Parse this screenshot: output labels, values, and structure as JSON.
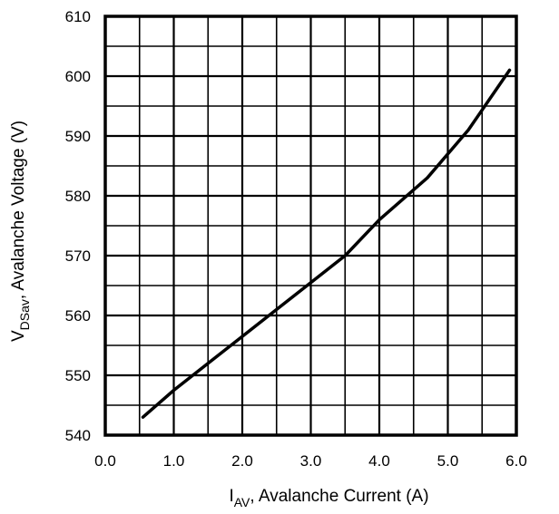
{
  "chart_data": {
    "type": "line",
    "title": "",
    "xlabel": {
      "main": "I",
      "sub": "AV",
      "rest": ", Avalanche Current (A)"
    },
    "ylabel": {
      "main": "V",
      "sub": "DSav",
      "rest": ", Avalanche Voltage (V)"
    },
    "xlim": [
      0,
      6
    ],
    "ylim": [
      540,
      610
    ],
    "x_ticks": [
      "0.0",
      "1.0",
      "2.0",
      "3.0",
      "4.0",
      "5.0",
      "6.0"
    ],
    "y_ticks": [
      "540",
      "550",
      "560",
      "570",
      "580",
      "590",
      "600",
      "610"
    ],
    "x_minor_step": 0.5,
    "y_minor_step": 5,
    "grid": true,
    "series": [
      {
        "x": [
          0.55,
          1.0,
          1.5,
          2.0,
          2.5,
          3.0,
          3.5,
          4.0,
          4.7,
          5.3,
          5.9
        ],
        "y": [
          543,
          547.5,
          552,
          556.5,
          561,
          565.5,
          570,
          576,
          583,
          591,
          601
        ]
      }
    ]
  }
}
